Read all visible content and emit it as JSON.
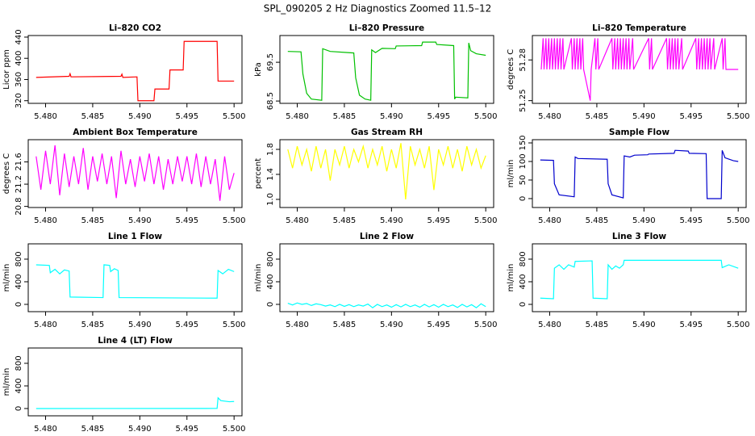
{
  "title": "SPL_090205  2 Hz Diagnostics Zoomed 11.5–12",
  "chart_data": [
    {
      "type": "line",
      "title": "Li–820 CO2",
      "ylabel": "Licor ppm",
      "color": "#ff0000",
      "xlim": [
        5.47816,
        5.50084
      ],
      "xticks": [
        {
          "value": 5.48,
          "label": "5.480"
        },
        5.485,
        {
          "value": 5.49,
          "label": "5.490"
        },
        5.495,
        {
          "value": 5.5,
          "label": "5.500"
        }
      ],
      "ylim": [
        315,
        443
      ],
      "yticks": [
        320,
        360,
        400,
        440
      ],
      "x": [
        5.479,
        5.4825,
        5.4826,
        5.4827,
        5.488,
        5.4881,
        5.4882,
        5.4897,
        5.4898,
        5.4915,
        5.4916,
        5.4931,
        5.4932,
        5.4946,
        5.4947,
        5.4982,
        5.4983,
        5.5
      ],
      "values": [
        364,
        366,
        371,
        365,
        366,
        370,
        364,
        365,
        320,
        320,
        342,
        342,
        378,
        378,
        432,
        432,
        357,
        357
      ]
    },
    {
      "type": "line",
      "title": "Li–820 Pressure",
      "ylabel": "kPa",
      "color": "#00c000",
      "xlim": [
        5.47816,
        5.50084
      ],
      "xticks": [
        {
          "value": 5.48,
          "label": "5.480"
        },
        5.485,
        {
          "value": 5.49,
          "label": "5.490"
        },
        5.495,
        {
          "value": 5.5,
          "label": "5.500"
        }
      ],
      "ylim": [
        68.44,
        70.19
      ],
      "yticks": [
        68.5,
        69.5
      ],
      "x": [
        5.479,
        5.4804,
        5.4806,
        5.481,
        5.4815,
        5.4826,
        5.4827,
        5.4835,
        5.486,
        5.4862,
        5.4866,
        5.4872,
        5.4878,
        5.4879,
        5.4883,
        5.489,
        5.4904,
        5.4905,
        5.4932,
        5.4933,
        5.4947,
        5.4948,
        5.4966,
        5.4967,
        5.4968,
        5.4981,
        5.4982,
        5.4984,
        5.499,
        5.5
      ],
      "values": [
        69.78,
        69.77,
        69.2,
        68.7,
        68.55,
        68.52,
        69.85,
        69.78,
        69.74,
        69.1,
        68.65,
        68.55,
        68.52,
        69.82,
        69.75,
        69.86,
        69.85,
        69.92,
        69.93,
        70.02,
        70.02,
        69.96,
        69.93,
        68.55,
        68.6,
        68.58,
        70.0,
        69.8,
        69.72,
        69.68
      ]
    },
    {
      "type": "line",
      "title": "Li–820 Temperature",
      "ylabel": "degrees C",
      "color": "#ff00ff",
      "xlim": [
        5.47816,
        5.50084
      ],
      "xticks": [
        {
          "value": 5.48,
          "label": "5.480"
        },
        5.485,
        {
          "value": 5.49,
          "label": "5.490"
        },
        5.495,
        {
          "value": 5.5,
          "label": "5.500"
        }
      ],
      "ylim": [
        51.248,
        51.298
      ],
      "yticks": [
        51.25,
        51.28
      ],
      "x": [
        5.4791,
        5.4793,
        5.4794,
        5.4796,
        5.4797,
        5.4799,
        5.48,
        5.4802,
        5.4803,
        5.4805,
        5.4806,
        5.4808,
        5.4809,
        5.4811,
        5.4812,
        5.4814,
        5.4815,
        5.4823,
        5.4824,
        5.4826,
        5.4827,
        5.4829,
        5.483,
        5.4832,
        5.4833,
        5.4835,
        5.4836,
        5.4843,
        5.4844,
        5.4848,
        5.4849,
        5.4851,
        5.4852,
        5.4866,
        5.4867,
        5.4869,
        5.487,
        5.4872,
        5.4873,
        5.4875,
        5.4876,
        5.4878,
        5.4879,
        5.4881,
        5.4882,
        5.4884,
        5.4885,
        5.4888,
        5.4889,
        5.4905,
        5.4906,
        5.4908,
        5.4909,
        5.4924,
        5.4925,
        5.4927,
        5.4928,
        5.493,
        5.4931,
        5.4933,
        5.4934,
        5.4936,
        5.4937,
        5.494,
        5.4941,
        5.4955,
        5.4956,
        5.4958,
        5.4959,
        5.4961,
        5.4962,
        5.4964,
        5.4965,
        5.4967,
        5.4968,
        5.497,
        5.4971,
        5.4974,
        5.4975,
        5.4983,
        5.4984,
        5.4986,
        5.4987,
        5.5
      ],
      "values": [
        51.273,
        51.296,
        51.273,
        51.296,
        51.273,
        51.296,
        51.273,
        51.296,
        51.273,
        51.296,
        51.273,
        51.296,
        51.273,
        51.296,
        51.273,
        51.296,
        51.273,
        51.296,
        51.273,
        51.296,
        51.273,
        51.296,
        51.273,
        51.296,
        51.273,
        51.296,
        51.273,
        51.25,
        51.273,
        51.296,
        51.273,
        51.296,
        51.273,
        51.296,
        51.273,
        51.296,
        51.273,
        51.296,
        51.273,
        51.296,
        51.273,
        51.296,
        51.273,
        51.296,
        51.273,
        51.296,
        51.273,
        51.296,
        51.273,
        51.296,
        51.273,
        51.296,
        51.273,
        51.296,
        51.273,
        51.296,
        51.273,
        51.296,
        51.273,
        51.296,
        51.273,
        51.296,
        51.273,
        51.296,
        51.273,
        51.296,
        51.273,
        51.296,
        51.273,
        51.296,
        51.273,
        51.296,
        51.273,
        51.296,
        51.273,
        51.296,
        51.273,
        51.296,
        51.273,
        51.296,
        51.273,
        51.296,
        51.273,
        51.273
      ]
    },
    {
      "type": "line",
      "title": "Ambient Box Temperature",
      "ylabel": "degrees C",
      "color": "#ff00ff",
      "xlim": [
        5.47816,
        5.50084
      ],
      "xticks": [
        {
          "value": 5.48,
          "label": "5.480"
        },
        5.485,
        {
          "value": 5.49,
          "label": "5.490"
        },
        5.495,
        {
          "value": 5.5,
          "label": "5.500"
        }
      ],
      "ylim": [
        20.78,
        22.0
      ],
      "yticks": [
        20.8,
        21.2,
        21.6
      ],
      "x": [
        5.479,
        5.4795,
        5.48,
        5.4805,
        5.481,
        5.4815,
        5.482,
        5.4825,
        5.483,
        5.4835,
        5.484,
        5.4845,
        5.485,
        5.4855,
        5.486,
        5.4865,
        5.487,
        5.4875,
        5.488,
        5.4885,
        5.489,
        5.4895,
        5.49,
        5.4905,
        5.491,
        5.4915,
        5.492,
        5.4925,
        5.493,
        5.4935,
        5.494,
        5.4945,
        5.495,
        5.4955,
        5.496,
        5.4965,
        5.497,
        5.4975,
        5.498,
        5.4985,
        5.499,
        5.4995,
        5.5
      ],
      "values": [
        21.7,
        21.1,
        21.8,
        21.2,
        21.9,
        21.0,
        21.75,
        21.15,
        21.7,
        21.2,
        21.85,
        21.1,
        21.7,
        21.25,
        21.75,
        21.2,
        21.7,
        20.95,
        21.8,
        21.2,
        21.65,
        21.15,
        21.7,
        21.25,
        21.75,
        21.2,
        21.7,
        21.1,
        21.65,
        21.2,
        21.7,
        21.25,
        21.7,
        21.2,
        21.75,
        21.15,
        21.7,
        21.2,
        21.65,
        20.9,
        21.7,
        21.1,
        21.4
      ]
    },
    {
      "type": "line",
      "title": "Gas Stream RH",
      "ylabel": "percent",
      "color": "#ffff00",
      "xlim": [
        5.47816,
        5.50084
      ],
      "xticks": [
        {
          "value": 5.48,
          "label": "5.480"
        },
        5.485,
        {
          "value": 5.49,
          "label": "5.490"
        },
        5.495,
        {
          "value": 5.5,
          "label": "5.500"
        }
      ],
      "ylim": [
        0.87,
        1.955
      ],
      "yticks": [
        {
          "value": 1.0,
          "label": "1.0"
        },
        1.4,
        1.8
      ],
      "x": [
        5.479,
        5.4795,
        5.48,
        5.4805,
        5.481,
        5.4815,
        5.482,
        5.4825,
        5.483,
        5.4835,
        5.484,
        5.4845,
        5.485,
        5.4855,
        5.486,
        5.4865,
        5.487,
        5.4875,
        5.488,
        5.4885,
        5.489,
        5.4895,
        5.49,
        5.4905,
        5.491,
        5.4915,
        5.492,
        5.4925,
        5.493,
        5.4935,
        5.494,
        5.4945,
        5.495,
        5.4955,
        5.496,
        5.4965,
        5.497,
        5.4975,
        5.498,
        5.4985,
        5.499,
        5.4995,
        5.5
      ],
      "values": [
        1.8,
        1.5,
        1.85,
        1.55,
        1.8,
        1.45,
        1.85,
        1.5,
        1.8,
        1.3,
        1.8,
        1.55,
        1.85,
        1.5,
        1.8,
        1.6,
        1.85,
        1.5,
        1.8,
        1.55,
        1.85,
        1.45,
        1.8,
        1.5,
        1.9,
        1.0,
        1.85,
        1.55,
        1.8,
        1.5,
        1.85,
        1.15,
        1.8,
        1.55,
        1.85,
        1.5,
        1.8,
        1.45,
        1.85,
        1.55,
        1.8,
        1.5,
        1.7
      ]
    },
    {
      "type": "line",
      "title": "Sample Flow",
      "ylabel": "ml/min",
      "color": "#0000cd",
      "xlim": [
        5.47816,
        5.50084
      ],
      "xticks": [
        {
          "value": 5.48,
          "label": "5.480"
        },
        5.485,
        {
          "value": 5.49,
          "label": "5.490"
        },
        5.495,
        {
          "value": 5.5,
          "label": "5.500"
        }
      ],
      "ylim": [
        -24,
        158.7
      ],
      "yticks": [
        0,
        50,
        100,
        150
      ],
      "x": [
        5.479,
        5.4804,
        5.4805,
        5.481,
        5.4826,
        5.4827,
        5.483,
        5.4861,
        5.4862,
        5.4866,
        5.4878,
        5.4879,
        5.4885,
        5.489,
        5.4904,
        5.4905,
        5.4932,
        5.4933,
        5.4947,
        5.4948,
        5.4966,
        5.4967,
        5.4982,
        5.4983,
        5.4986,
        5.4995,
        5.5
      ],
      "values": [
        104,
        103,
        40,
        10,
        5,
        112,
        108,
        106,
        40,
        10,
        2,
        115,
        112,
        117,
        118,
        120,
        122,
        130,
        128,
        122,
        121,
        0,
        0,
        130,
        110,
        102,
        100
      ]
    },
    {
      "type": "line",
      "title": "Line 1 Flow",
      "ylabel": "ml/min",
      "color": "#00ffff",
      "xlim": [
        5.47816,
        5.50084
      ],
      "xticks": [
        {
          "value": 5.48,
          "label": "5.480"
        },
        5.485,
        {
          "value": 5.49,
          "label": "5.490"
        },
        5.495,
        {
          "value": 5.5,
          "label": "5.500"
        }
      ],
      "ylim": [
        -129,
        1071
      ],
      "yticks": [
        0,
        400,
        800
      ],
      "x": [
        5.479,
        5.4804,
        5.4805,
        5.481,
        5.4815,
        5.482,
        5.4825,
        5.4826,
        5.4861,
        5.4862,
        5.4868,
        5.4869,
        5.4873,
        5.4877,
        5.4878,
        5.4982,
        5.4983,
        5.4988,
        5.4994,
        5.5
      ],
      "values": [
        700,
        690,
        560,
        620,
        540,
        610,
        590,
        130,
        120,
        700,
        690,
        580,
        630,
        600,
        120,
        110,
        600,
        540,
        620,
        580
      ]
    },
    {
      "type": "line",
      "title": "Line 2 Flow",
      "ylabel": "ml/min",
      "color": "#00ffff",
      "xlim": [
        5.47816,
        5.50084
      ],
      "xticks": [
        {
          "value": 5.48,
          "label": "5.480"
        },
        5.485,
        {
          "value": 5.49,
          "label": "5.490"
        },
        5.495,
        {
          "value": 5.5,
          "label": "5.500"
        }
      ],
      "ylim": [
        -129,
        1071
      ],
      "yticks": [
        0,
        400,
        800
      ],
      "x": [
        5.479,
        5.4795,
        5.48,
        5.4805,
        5.481,
        5.4815,
        5.482,
        5.4825,
        5.483,
        5.4835,
        5.484,
        5.4845,
        5.485,
        5.4855,
        5.486,
        5.4865,
        5.487,
        5.4875,
        5.488,
        5.4885,
        5.489,
        5.4895,
        5.49,
        5.4905,
        5.491,
        5.4915,
        5.492,
        5.4925,
        5.493,
        5.4935,
        5.494,
        5.4945,
        5.495,
        5.4955,
        5.496,
        5.4965,
        5.497,
        5.4975,
        5.498,
        5.4985,
        5.499,
        5.4995,
        5.5
      ],
      "values": [
        20,
        -10,
        25,
        0,
        15,
        -20,
        10,
        -5,
        -30,
        -10,
        -40,
        0,
        -35,
        -5,
        -40,
        -10,
        -30,
        5,
        -60,
        0,
        -40,
        -10,
        -50,
        -5,
        -45,
        0,
        -40,
        -10,
        -50,
        0,
        -45,
        -5,
        -50,
        0,
        -40,
        -10,
        -55,
        0,
        -45,
        -5,
        -60,
        10,
        -40
      ]
    },
    {
      "type": "line",
      "title": "Line 3 Flow",
      "ylabel": "ml/min",
      "color": "#00ffff",
      "xlim": [
        5.47816,
        5.50084
      ],
      "xticks": [
        {
          "value": 5.48,
          "label": "5.480"
        },
        5.485,
        {
          "value": 5.49,
          "label": "5.490"
        },
        5.495,
        {
          "value": 5.5,
          "label": "5.500"
        }
      ],
      "ylim": [
        -129,
        1071
      ],
      "yticks": [
        0,
        400,
        800
      ],
      "x": [
        5.479,
        5.4804,
        5.4805,
        5.481,
        5.4815,
        5.482,
        5.4826,
        5.4827,
        5.4845,
        5.4846,
        5.4861,
        5.4862,
        5.4866,
        5.487,
        5.4874,
        5.4878,
        5.4879,
        5.4982,
        5.4983,
        5.499,
        5.5
      ],
      "values": [
        110,
        100,
        640,
        700,
        620,
        700,
        660,
        760,
        770,
        110,
        100,
        700,
        620,
        680,
        640,
        700,
        780,
        780,
        650,
        700,
        640
      ]
    },
    {
      "type": "line",
      "title": "Line 4 (LT) Flow",
      "ylabel": "ml/min",
      "color": "#00ffff",
      "xlim": [
        5.47816,
        5.50084
      ],
      "xticks": [
        {
          "value": 5.48,
          "label": "5.480"
        },
        5.485,
        {
          "value": 5.49,
          "label": "5.490"
        },
        5.495,
        {
          "value": 5.5,
          "label": "5.500"
        }
      ],
      "ylim": [
        -129,
        1071
      ],
      "yticks": [
        0,
        400,
        800
      ],
      "x": [
        5.479,
        5.4982,
        5.4983,
        5.4986,
        5.4995,
        5.5
      ],
      "values": [
        0,
        2,
        190,
        140,
        120,
        125
      ]
    }
  ]
}
